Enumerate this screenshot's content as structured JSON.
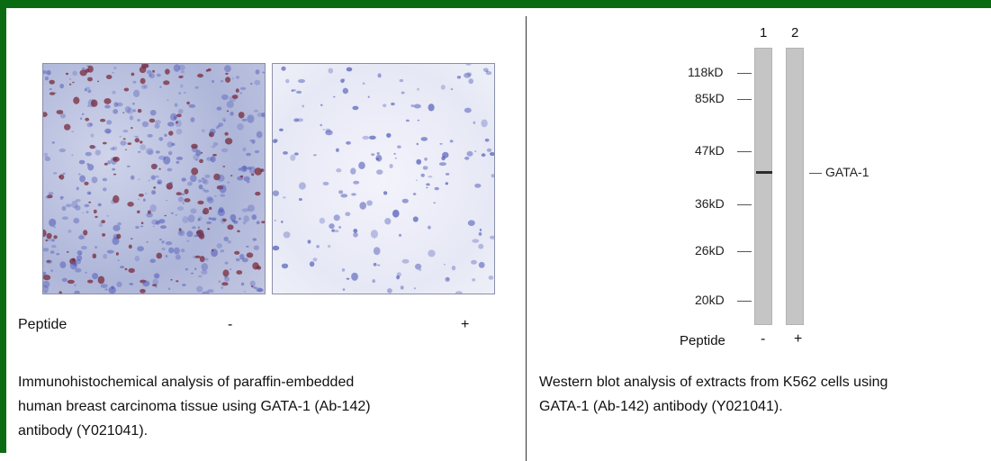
{
  "left_panel": {
    "peptide_label": "Peptide",
    "peptide_minus": "-",
    "peptide_plus": "+",
    "caption_lines": [
      "Immunohistochemical analysis of paraffin-embedded",
      "human breast carcinoma tissue using GATA-1 (Ab-142)",
      "antibody (Y021041)."
    ]
  },
  "right_panel": {
    "lane_numbers": [
      "1",
      "2"
    ],
    "markers": [
      "118kD",
      "85kD",
      "47kD",
      "36kD",
      "26kD",
      "20kD"
    ],
    "band_label": "GATA-1",
    "peptide_label": "Peptide",
    "peptide_minus": "-",
    "peptide_plus": "+",
    "caption_lines": [
      "Western blot analysis of extracts from K562 cells using",
      "GATA-1 (Ab-142) antibody (Y021041)."
    ]
  },
  "colors": {
    "frame": "#0b6b12",
    "stain_brown": "#7a2a3a",
    "stain_blue": "#4b55b5"
  }
}
